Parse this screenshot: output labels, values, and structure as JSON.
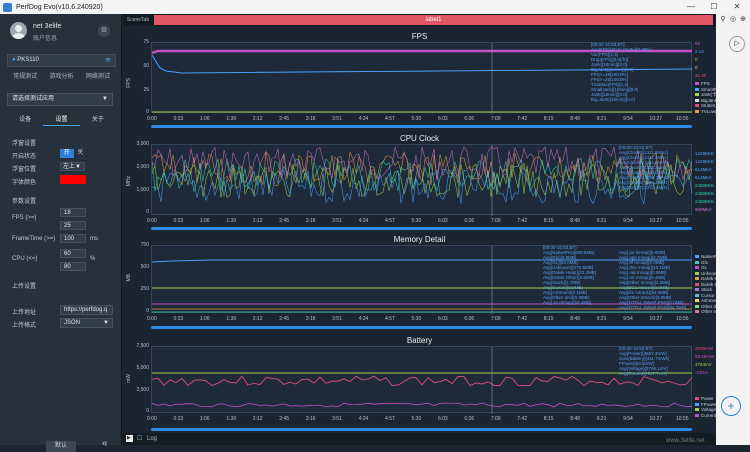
{
  "window": {
    "title": "PerfDog Evo(v10.6.240920)",
    "minimize": "—",
    "maximize": "☐",
    "close": "✕"
  },
  "user": {
    "name": "net 3elife",
    "info": "账户信息"
  },
  "device": {
    "name": "PKS110",
    "signal_icon": "wifi-icon"
  },
  "mode_tabs": [
    "常规测试",
    "游戏分析",
    "网络测试"
  ],
  "app_select": {
    "placeholder": "请选择测试应用"
  },
  "tabs": [
    "设备",
    "设置",
    "关于"
  ],
  "active_tab": "设置",
  "float_settings": {
    "title": "浮窗设置",
    "state_label": "开启状态",
    "state_on": "开",
    "state_off": "关",
    "position_label": "浮窗位置",
    "position_value": "左上▼",
    "font_color_label": "字体颜色",
    "font_color": "#ff0000"
  },
  "params": {
    "title": "参数设置",
    "fps_label": "FPS (>=)",
    "fps_values": [
      "18",
      "25"
    ],
    "frametime_label": "FrameTime (>=)",
    "frametime_value": "100",
    "frametime_unit": "ms",
    "cpu_label": "CPU (<=)",
    "cpu_values": [
      "60",
      "80"
    ],
    "cpu_unit": "%"
  },
  "upload": {
    "title": "上传设置",
    "address_label": "上传地址",
    "address_value": "https://perfdog.q",
    "format_label": "上传格式",
    "format_value": "JSON"
  },
  "footer": {
    "default_button": "默认",
    "collapse": "«"
  },
  "scene": {
    "tab": "SceneTab",
    "label": "label1"
  },
  "x_ticks": [
    "0:00",
    "0:33",
    "1:06",
    "1:39",
    "2:12",
    "2:45",
    "3:18",
    "3:51",
    "4:24",
    "4:57",
    "5:30",
    "6:03",
    "6:36",
    "7:09",
    "7:42",
    "8:15",
    "8:48",
    "9:21",
    "9:54",
    "10:27",
    "10:55"
  ],
  "panels": {
    "fps": {
      "title": "FPS",
      "ylabel": "FPS",
      "yticks": [
        "75",
        "50",
        "25",
        "0"
      ],
      "stats": [
        "[00:00-10:53,BT]",
        "Avg(FPS)[60.8]    Stutter[0.00%]",
        "Var(FPS)[1.5]",
        "Drop(FPS)[0.0(/h)]",
        "Jank([10min])[0.0]",
        "BigJank([10min])[0.0]",
        "FPS>=18[100.0%]",
        "FPS>=25[100.0%]",
        "TSuMax(FPS)[1.2]",
        "SmallJank([10min])[0.0]",
        "Jank([10min])[0.0]",
        "Big.Jank([10min])[0.0]"
      ],
      "right_values": [
        {
          "v": "58",
          "c": "#c64fc6"
        },
        {
          "v": "2.14",
          "c": "#4aa3ff"
        },
        {
          "v": "0",
          "c": "#9fd44a"
        },
        {
          "v": "0",
          "c": "#cccccc"
        },
        {
          "v": "31.30",
          "c": "#e04d7e"
        },
        {
          "v": "0",
          "c": "#e0a040"
        }
      ],
      "legend": [
        {
          "n": "FPS",
          "c": "#c64fc6"
        },
        {
          "n": "Smooth(平滑度)",
          "c": "#4aa3ff"
        },
        {
          "n": "Jank(卡顿次数)",
          "c": "#9fd44a"
        },
        {
          "n": "BigJank(严重卡顿)",
          "c": "#e0e0e0"
        },
        {
          "n": "Stutter(卡顿率)",
          "c": "#e04d7e"
        },
        {
          "n": "TVLow(时间)",
          "c": "#e0a040"
        }
      ]
    },
    "cpu": {
      "title": "CPU Clock",
      "ylabel": "MHz",
      "yticks": [
        "3,000",
        "2,000",
        "1,000",
        "0"
      ],
      "stats": [
        "[00:00-10:53,BT]",
        "Avg(Clock0)[1111.2MHz]",
        "Avg(Clock1)[1111.2MHz]",
        "Avg(Clock2)[1111.2MHz]",
        "Avg(Clock3)[1111.2MHz]",
        "Avg(Clock4)[1854.3MHz]",
        "Avg(Clock5)[1854.3MHz]",
        "Avg(Clock6)[1854.3MHz]",
        "Avg(Clock7)[2214.4MHz]"
      ],
      "right_values": [
        {
          "v": "1228MHz",
          "c": "#4aa3ff"
        },
        {
          "v": "1228MHz",
          "c": "#4aa3ff"
        },
        {
          "v": "614MHz",
          "c": "#4aa3ff"
        },
        {
          "v": "614MHz",
          "c": "#4aa3ff"
        },
        {
          "v": "2400MHz",
          "c": "#3ad0b0"
        },
        {
          "v": "2400MHz",
          "c": "#3ad0b0"
        },
        {
          "v": "2400MHz",
          "c": "#3ad0b0"
        },
        {
          "v": "960MHz",
          "c": "#d070d0"
        }
      ],
      "legend": []
    },
    "memory": {
      "title": "Memory Detail",
      "ylabel": "MB",
      "yticks": [
        "750",
        "500",
        "250",
        "0"
      ],
      "stats_left": [
        "[00:00-10:53,BT]",
        "Avg(NativePss)[608.5MB]",
        "Avg(Gfx)[0.0MB]",
        "Avg(GL)[84.0MB]",
        "Avg(Unknown)[270.5MB]",
        "Avg(Dalvik Heap)[22.3MB]",
        "Avg(Dalvik Other)[5.5MB]",
        "Avg(Stack)[1.7MB]",
        "Avg(Cursor)[0.0MB]",
        "Avg(Ashmem)[0.1MB]",
        "Avg(Other dev)[0.3MB]",
        "Avg(.so mmap)[53.4MB]"
      ],
      "stats_right": [
        "Avg(.jar mmap)[0.0MB]",
        "Avg(.apk mmap)[0.7MB]",
        "Avg(.ttf mmap)[0.0MB]",
        "Avg(.dex mmap)[13.1MB]",
        "Avg(.oat mmap)[0.0MB]",
        "Avg(.art mmap)[8.4MB]",
        "Avg(Other mmap)[2.4MB]",
        "Avg(EGL mtrack)[0.0MB]",
        "Avg(GL mtrack)[84.0MB]",
        "Avg(Other mtrack)[0.0MB]",
        "Avg(TOTAL SWAP PSS)[0.0MB]",
        "Avg(TOTAL SWAP PSS)[94.7MB]"
      ],
      "legend": [
        {
          "n": "NativePss",
          "c": "#4aa3ff"
        },
        {
          "n": "Gfx",
          "c": "#3ad0b0"
        },
        {
          "n": "GL",
          "c": "#c64fc6"
        },
        {
          "n": "Unknown",
          "c": "#9fd44a"
        },
        {
          "n": "Dalvik Heap",
          "c": "#e0a040"
        },
        {
          "n": "Dalvik Other",
          "c": "#e04d7e"
        },
        {
          "n": "Stack",
          "c": "#a080e0"
        },
        {
          "n": "Cursor",
          "c": "#60c0e0"
        },
        {
          "n": "Ashmem",
          "c": "#e0e060"
        },
        {
          "n": "Other dev",
          "c": "#80e080"
        },
        {
          "n": "Other mm",
          "c": "#e08080"
        }
      ]
    },
    "battery": {
      "title": "Battery",
      "ylabel": "mW",
      "yticks": [
        "7,500",
        "5,000",
        "2,500",
        "0"
      ],
      "stats": [
        "[00:00-10:53,BT]",
        "Avg(Power)[3657.3mW]",
        "Sum(Battery)[411.7mWh]",
        "FPower[63.5mW]",
        "Avg(Voltage)[3795.1mV]",
        "Avg(Current)[-947.7mA]"
      ],
      "right_values": [
        {
          "v": "3935mW",
          "c": "#e04d7e"
        },
        {
          "v": "58.59mW",
          "c": "#c64fc6"
        },
        {
          "v": "3784mV",
          "c": "#9fd44a"
        },
        {
          "v": "-10mA",
          "c": "#c64fc6"
        }
      ],
      "legend": [
        {
          "n": "Power",
          "c": "#e04d7e"
        },
        {
          "n": "FPower",
          "c": "#4aa3ff"
        },
        {
          "n": "Voltage",
          "c": "#9fd44a"
        },
        {
          "n": "Current",
          "c": "#c64fc6"
        }
      ]
    }
  },
  "log_label": "Log",
  "watermark": "www.3elife.net"
}
